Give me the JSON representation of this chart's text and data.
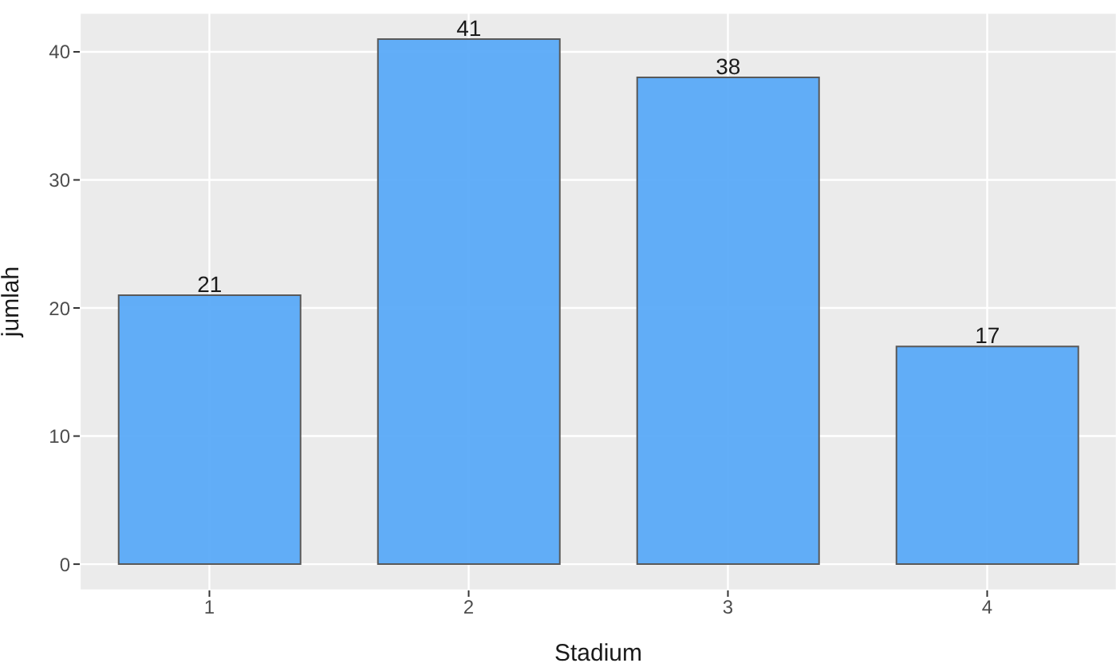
{
  "chart_data": {
    "type": "bar",
    "xlabel": "Stadium",
    "ylabel": "jumlah",
    "categories": [
      "1",
      "2",
      "3",
      "4"
    ],
    "values": [
      21,
      41,
      38,
      17
    ],
    "color": "#5aaaf8",
    "ylim": [
      -2.05,
      43.05
    ],
    "yticks": [
      0,
      10,
      20,
      30,
      40
    ],
    "grid": true,
    "data_labels": true
  }
}
